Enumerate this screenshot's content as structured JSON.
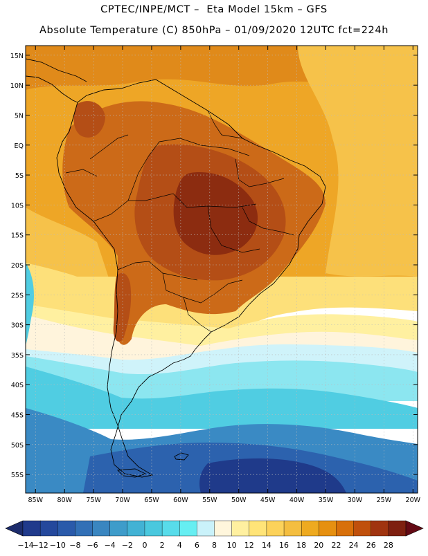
{
  "title_line1": "CPTEC/INPE/MCT –  Eta Model 15km – GFS",
  "title_line2": "Absolute Temperature (C) 850hPa – 01/09/2020 12UTC fct=224h",
  "lat_ticks": [
    {
      "label": "15N",
      "lat": 15
    },
    {
      "label": "10N",
      "lat": 10
    },
    {
      "label": "5N",
      "lat": 5
    },
    {
      "label": "EQ",
      "lat": 0
    },
    {
      "label": "5S",
      "lat": -5
    },
    {
      "label": "10S",
      "lat": -10
    },
    {
      "label": "15S",
      "lat": -15
    },
    {
      "label": "20S",
      "lat": -20
    },
    {
      "label": "25S",
      "lat": -25
    },
    {
      "label": "30S",
      "lat": -30
    },
    {
      "label": "35S",
      "lat": -35
    },
    {
      "label": "40S",
      "lat": -40
    },
    {
      "label": "45S",
      "lat": -45
    },
    {
      "label": "50S",
      "lat": -50
    },
    {
      "label": "55S",
      "lat": -55
    }
  ],
  "lon_ticks": [
    {
      "label": "85W",
      "lon": -85
    },
    {
      "label": "80W",
      "lon": -80
    },
    {
      "label": "75W",
      "lon": -75
    },
    {
      "label": "70W",
      "lon": -70
    },
    {
      "label": "65W",
      "lon": -65
    },
    {
      "label": "60W",
      "lon": -60
    },
    {
      "label": "55W",
      "lon": -55
    },
    {
      "label": "50W",
      "lon": -50
    },
    {
      "label": "45W",
      "lon": -45
    },
    {
      "label": "40W",
      "lon": -40
    },
    {
      "label": "35W",
      "lon": -35
    },
    {
      "label": "30W",
      "lon": -30
    },
    {
      "label": "25W",
      "lon": -25
    },
    {
      "label": "20W",
      "lon": -20
    }
  ],
  "colorbar": {
    "labels": [
      "-14",
      "-12",
      "-10",
      "-8",
      "-6",
      "-4",
      "-2",
      "0",
      "2",
      "4",
      "6",
      "8",
      "10",
      "12",
      "14",
      "16",
      "18",
      "20",
      "22",
      "24",
      "26",
      "28"
    ],
    "colors": [
      "#203a8c",
      "#24489c",
      "#2a5aaa",
      "#3270b6",
      "#3a86c0",
      "#3e9cca",
      "#42b2d4",
      "#4ac8de",
      "#58dcea",
      "#66eef2",
      "#caf2fa",
      "#fff6dc",
      "#fff0a0",
      "#ffe478",
      "#fcd25a",
      "#f4be40",
      "#eeaa20",
      "#e69010",
      "#d8700a",
      "#c0500c",
      "#a03410",
      "#7e2010"
    ],
    "low_color": "#1c2c6c",
    "high_color": "#640a14"
  },
  "field_colors": {
    "deep_blue": "#1f3a8a",
    "blue": "#2c62ae",
    "mid_blue": "#3a8ac4",
    "cyan": "#50cde2",
    "light_cyan": "#8ce6f0",
    "pale_cyan": "#cff3fa",
    "cream": "#fff4dc",
    "pale_yellow": "#fff0a0",
    "yellow": "#fde07a",
    "gold": "#f6c24a",
    "orange_yellow": "#eea626",
    "orange": "#e08a1a",
    "dark_orange": "#cc6a18",
    "red_orange": "#b44e16",
    "dark_red": "#8c2c10",
    "grid": "#bbbbbb",
    "coast": "#000000"
  }
}
